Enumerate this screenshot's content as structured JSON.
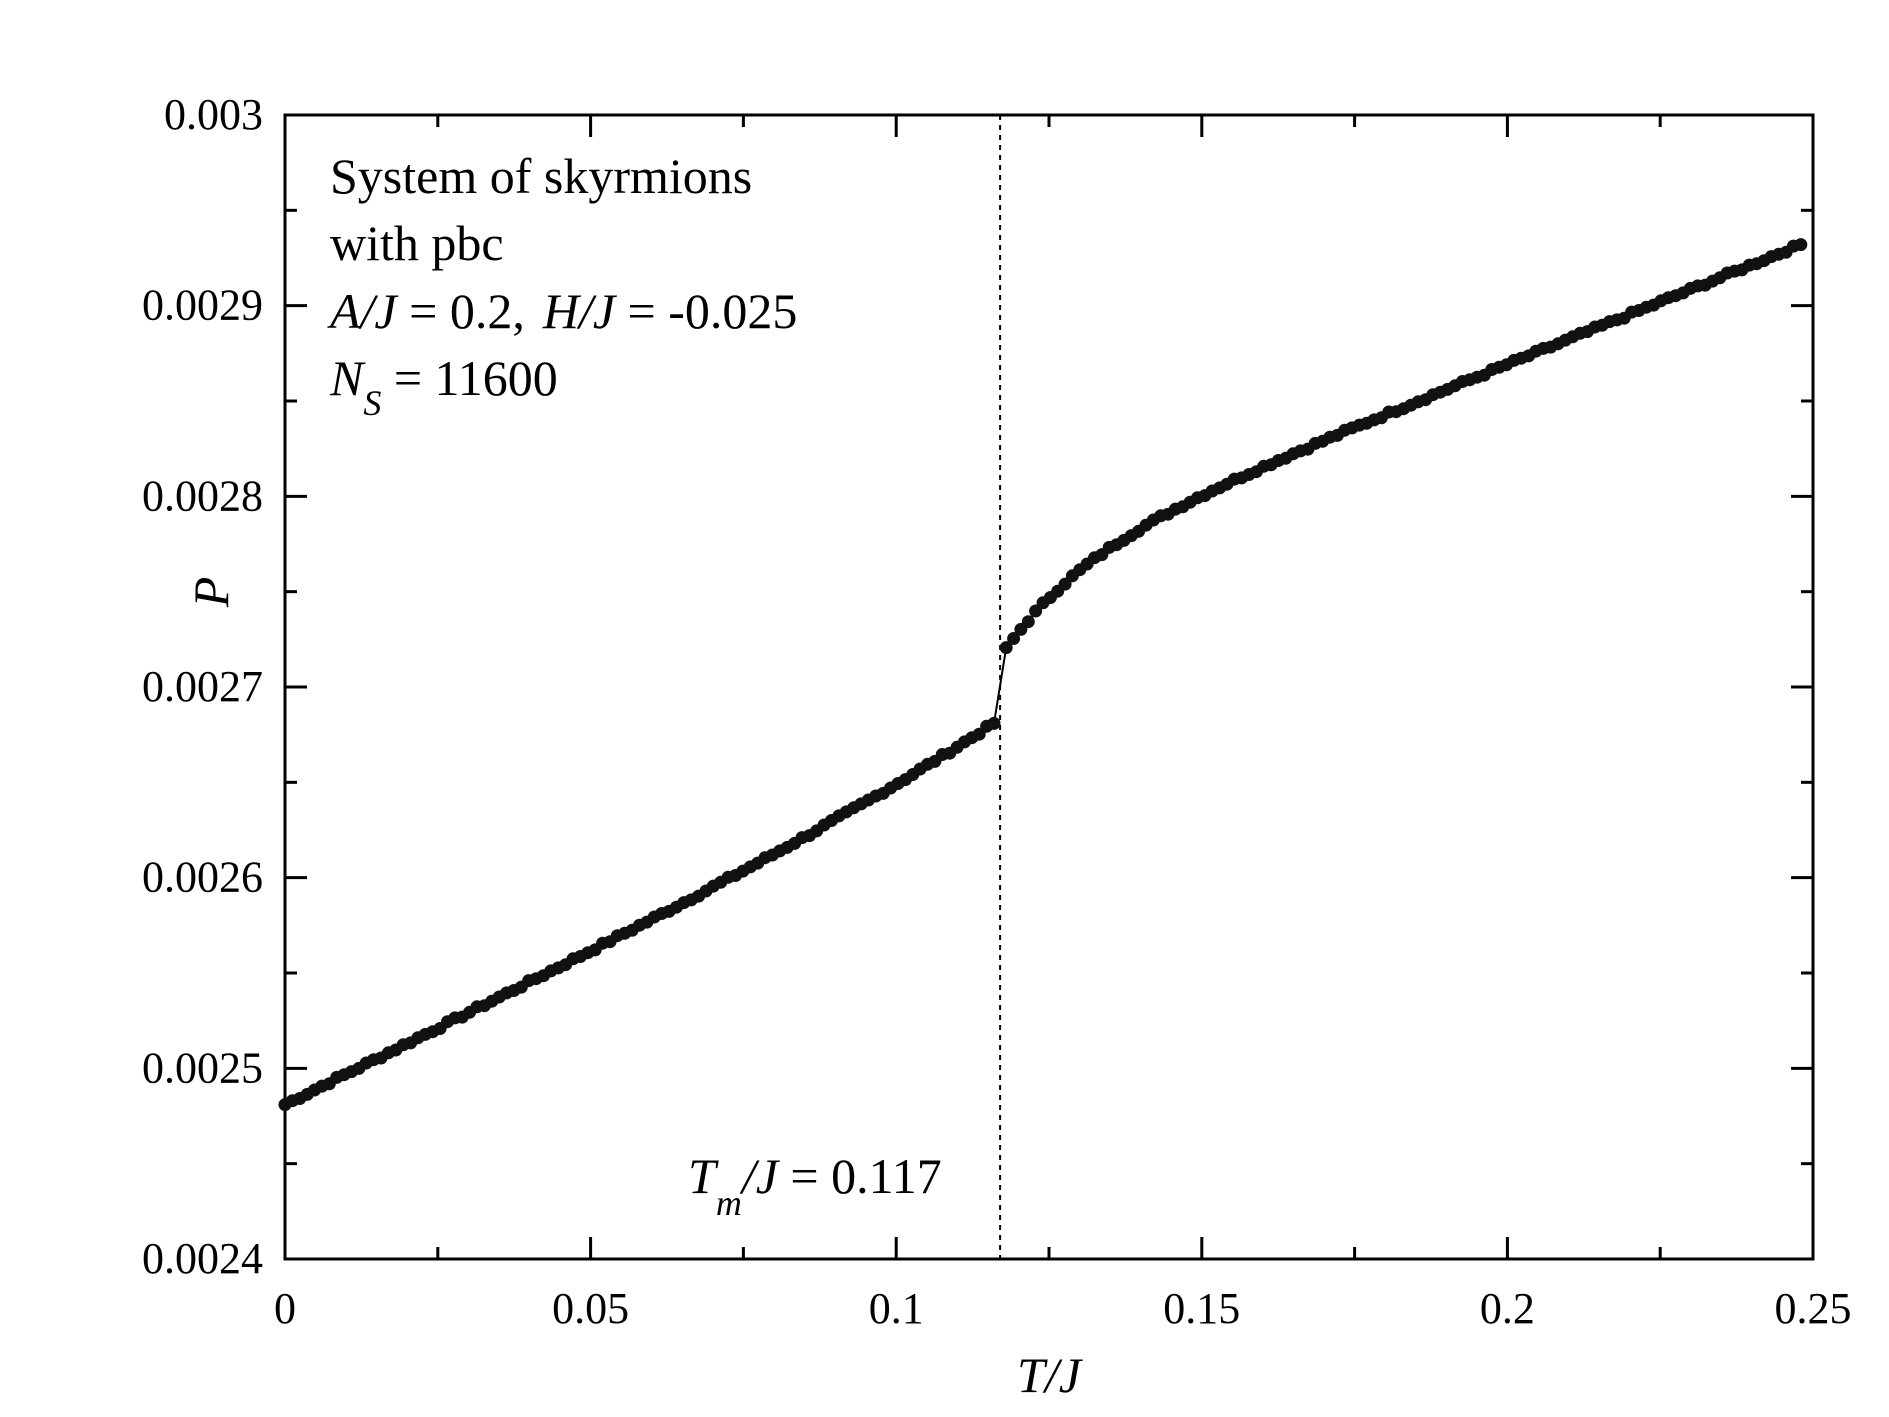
{
  "chart_data": {
    "type": "scatter",
    "xlabel": "T/J",
    "ylabel": "P",
    "xlim": [
      0,
      0.25
    ],
    "ylim": [
      0.0024,
      0.003
    ],
    "x_ticks": [
      "0",
      "0.05",
      "0.1",
      "0.15",
      "0.2",
      "0.25"
    ],
    "x_tick_values": [
      0,
      0.05,
      0.1,
      0.15,
      0.2,
      0.25
    ],
    "y_ticks": [
      "0.0024",
      "0.0025",
      "0.0026",
      "0.0027",
      "0.0028",
      "0.0029",
      "0.003"
    ],
    "y_tick_values": [
      0.0024,
      0.0025,
      0.0026,
      0.0027,
      0.0028,
      0.0029,
      0.003
    ],
    "annotation": {
      "lines": [
        "System of skyrmions",
        "with pbc",
        "A/J  = 0.2,  H/J  = -0.025",
        "N_S = 11600"
      ],
      "line1": "System of skyrmions",
      "line2": "with pbc",
      "aj": "A/J",
      "aj_val": " = 0.2,",
      "hj": "H/J",
      "hj_val": " = -0.025",
      "ns": "N",
      "ns_sub": "S",
      "ns_val": " = 11600"
    },
    "transition": {
      "x": 0.117,
      "label_t": "T",
      "label_sub": "m",
      "label_j": "/J",
      "label_val": " = 0.117"
    },
    "series": [
      {
        "marker": "filled-circle",
        "color": "#111111",
        "connected": true,
        "segments": [
          {
            "x_start": 0.0,
            "x_end": 0.116,
            "y_start": 0.002481,
            "y_end": 0.002681,
            "n": 97
          },
          {
            "x_start": 0.118,
            "x_end": 0.248,
            "y_start": 0.00272,
            "y_end": 0.002932,
            "n": 109
          }
        ]
      }
    ],
    "grid": false,
    "legend": "none"
  }
}
